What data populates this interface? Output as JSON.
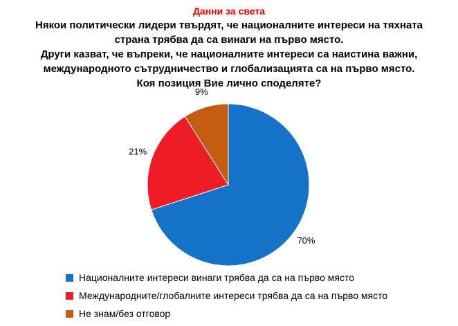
{
  "header": {
    "title": "Данни за света",
    "title_color": "#EE0000",
    "lines": [
      "Някои политически лидери твърдят, че националните интереси на тяхната",
      "страна трябва да са винаги на първо място.",
      "Други казват, че въпреки, че националните интереси са наистина важни,",
      "международното сътрудничество и глобализацията са на първо място.",
      "Коя позиция Вие лично споделяте?"
    ]
  },
  "chart_data": {
    "type": "pie",
    "title": "Данни за света",
    "slices": [
      {
        "label": "Националните интереси винаги трябва да са на първо място",
        "value": 70,
        "pct_label": "70%",
        "color": "#1572C6"
      },
      {
        "label": "Международните/глобалните интереси трябва да са на първо място",
        "value": 21,
        "pct_label": "21%",
        "color": "#EE1C25"
      },
      {
        "label": "Не знам/без отговор",
        "value": 9,
        "pct_label": "9%",
        "color": "#C55A11"
      }
    ],
    "start_angle_deg": 0,
    "direction": "clockwise",
    "legend_position": "bottom-left",
    "labels_position": "outside"
  }
}
